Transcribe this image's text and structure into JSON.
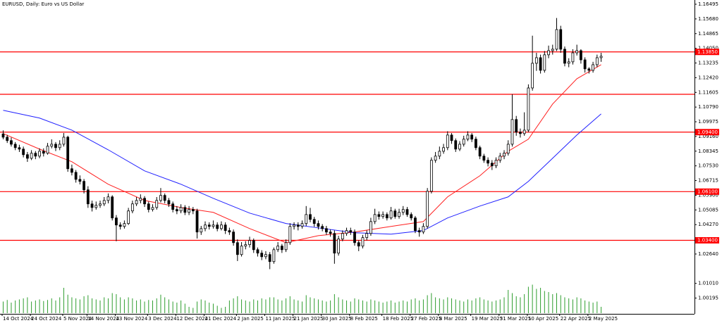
{
  "chart_data": {
    "type": "candlestick",
    "title": "EURUSD, Daily:  Euro vs US Dollar",
    "ylim": [
      1.00195,
      1.16495
    ],
    "yticks": [
      {
        "value": 1.16495,
        "label": "1.16495"
      },
      {
        "value": 1.1568,
        "label": "1.15680"
      },
      {
        "value": 1.14865,
        "label": "1.14865"
      },
      {
        "value": 1.1405,
        "label": "1.14050"
      },
      {
        "value": 1.13235,
        "label": "1.13235"
      },
      {
        "value": 1.1242,
        "label": "1.12420"
      },
      {
        "value": 1.11605,
        "label": "1.11605"
      },
      {
        "value": 1.1079,
        "label": "1.10790"
      },
      {
        "value": 1.09975,
        "label": "1.09975"
      },
      {
        "value": 1.0916,
        "label": "1.09160"
      },
      {
        "value": 1.08345,
        "label": "1.08345"
      },
      {
        "value": 1.0753,
        "label": "1.07530"
      },
      {
        "value": 1.06715,
        "label": "1.06715"
      },
      {
        "value": 1.059,
        "label": "1.05900"
      },
      {
        "value": 1.05085,
        "label": "1.05085"
      },
      {
        "value": 1.0427,
        "label": "1.04270"
      },
      {
        "value": 1.0264,
        "label": "1.02640"
      },
      {
        "value": 1.0101,
        "label": "1.01010"
      },
      {
        "value": 1.00195,
        "label": "1.00195"
      }
    ],
    "date_labels": [
      {
        "index": 0,
        "label": "14 Oct 2024"
      },
      {
        "index": 7,
        "label": "24 Oct 2024"
      },
      {
        "index": 15,
        "label": "5 Nov 2024"
      },
      {
        "index": 21,
        "label": "14 Nov 2024"
      },
      {
        "index": 28,
        "label": "23 Nov 2024"
      },
      {
        "index": 36,
        "label": "3 Dec 2024"
      },
      {
        "index": 43,
        "label": "12 Dec 2024"
      },
      {
        "index": 50,
        "label": "21 Dec 2024"
      },
      {
        "index": 58,
        "label": "2 Jan 2025"
      },
      {
        "index": 65,
        "label": "11 Jan 2025"
      },
      {
        "index": 72,
        "label": "21 Jan 2025"
      },
      {
        "index": 79,
        "label": "30 Jan 2025"
      },
      {
        "index": 86,
        "label": "8 Feb 2025"
      },
      {
        "index": 94,
        "label": "18 Feb 2025"
      },
      {
        "index": 101,
        "label": "27 Feb 2025"
      },
      {
        "index": 108,
        "label": "8 Mar 2025"
      },
      {
        "index": 116,
        "label": "19 Mar 2025"
      },
      {
        "index": 123,
        "label": "31 Mar 2025"
      },
      {
        "index": 130,
        "label": "10 Apr 2025"
      },
      {
        "index": 138,
        "label": "22 Apr 2025"
      },
      {
        "index": 145,
        "label": "2 May 2025"
      }
    ],
    "levels_color": "#ff0000",
    "levels": [
      {
        "value": 1.1385,
        "label": "1.13850"
      },
      {
        "value": 1.115
      },
      {
        "value": 1.094,
        "label": "1.09400"
      },
      {
        "value": 1.061,
        "label": "1.06100"
      },
      {
        "value": 1.034,
        "label": "1.03400"
      }
    ],
    "candle_colors": {
      "up": "#ffffff",
      "down": "#000000",
      "outline": "#000000"
    },
    "candles": [
      [
        1.093,
        1.095,
        1.09,
        1.0912
      ],
      [
        1.0912,
        1.0925,
        1.088,
        1.0893
      ],
      [
        1.0893,
        1.091,
        1.086,
        1.0873
      ],
      [
        1.0873,
        1.0885,
        1.084,
        1.0854
      ],
      [
        1.0854,
        1.087,
        1.083,
        1.0846
      ],
      [
        1.0846,
        1.086,
        1.08,
        1.0815
      ],
      [
        1.0815,
        1.083,
        1.0775,
        1.0795
      ],
      [
        1.0795,
        1.084,
        1.0785,
        1.0823
      ],
      [
        1.0823,
        1.0835,
        1.079,
        1.0807
      ],
      [
        1.0807,
        1.085,
        1.0795,
        1.0834
      ],
      [
        1.0834,
        1.085,
        1.0805,
        1.0823
      ],
      [
        1.0823,
        1.088,
        1.0815,
        1.0862
      ],
      [
        1.0862,
        1.09,
        1.085,
        1.0873
      ],
      [
        1.0873,
        1.0885,
        1.0835,
        1.0854
      ],
      [
        1.0854,
        1.0895,
        1.084,
        1.0873
      ],
      [
        1.0873,
        1.0935,
        1.086,
        1.0912
      ],
      [
        1.0912,
        1.092,
        1.072,
        1.0737
      ],
      [
        1.0737,
        1.076,
        1.07,
        1.0717
      ],
      [
        1.0717,
        1.073,
        1.066,
        1.0678
      ],
      [
        1.0678,
        1.07,
        1.065,
        1.0667
      ],
      [
        1.0667,
        1.068,
        1.06,
        1.062
      ],
      [
        1.062,
        1.064,
        1.052,
        1.0542
      ],
      [
        1.0542,
        1.056,
        1.05,
        1.0522
      ],
      [
        1.0522,
        1.0555,
        1.051,
        1.0534
      ],
      [
        1.0534,
        1.056,
        1.052,
        1.0542
      ],
      [
        1.0542,
        1.058,
        1.053,
        1.0561
      ],
      [
        1.0561,
        1.06,
        1.0545,
        1.0581
      ],
      [
        1.0581,
        1.059,
        1.045,
        1.0464
      ],
      [
        1.0464,
        1.048,
        1.0335,
        1.0425
      ],
      [
        1.0425,
        1.044,
        1.04,
        1.0417
      ],
      [
        1.0417,
        1.045,
        1.0405,
        1.0433
      ],
      [
        1.0433,
        1.052,
        1.0425,
        1.0503
      ],
      [
        1.0503,
        1.056,
        1.049,
        1.0542
      ],
      [
        1.0542,
        1.058,
        1.053,
        1.0561
      ],
      [
        1.0561,
        1.0595,
        1.0545,
        1.0573
      ],
      [
        1.0573,
        1.0585,
        1.0525,
        1.0542
      ],
      [
        1.0542,
        1.0555,
        1.0495,
        1.0511
      ],
      [
        1.0511,
        1.054,
        1.05,
        1.0522
      ],
      [
        1.0522,
        1.058,
        1.051,
        1.0561
      ],
      [
        1.0561,
        1.063,
        1.055,
        1.0589
      ],
      [
        1.0589,
        1.06,
        1.0545,
        1.0561
      ],
      [
        1.0561,
        1.0575,
        1.0525,
        1.0542
      ],
      [
        1.0542,
        1.0555,
        1.0495,
        1.0511
      ],
      [
        1.0511,
        1.053,
        1.0485,
        1.0503
      ],
      [
        1.0503,
        1.054,
        1.049,
        1.0522
      ],
      [
        1.0522,
        1.0535,
        1.048,
        1.0495
      ],
      [
        1.0495,
        1.053,
        1.048,
        1.0511
      ],
      [
        1.0511,
        1.0525,
        1.0485,
        1.0503
      ],
      [
        1.0503,
        1.0515,
        1.035,
        1.0386
      ],
      [
        1.0386,
        1.042,
        1.037,
        1.0405
      ],
      [
        1.0405,
        1.0445,
        1.039,
        1.0425
      ],
      [
        1.0425,
        1.044,
        1.04,
        1.0417
      ],
      [
        1.0417,
        1.045,
        1.0405,
        1.0425
      ],
      [
        1.0425,
        1.044,
        1.039,
        1.0405
      ],
      [
        1.0405,
        1.0445,
        1.0395,
        1.0425
      ],
      [
        1.0425,
        1.044,
        1.0375,
        1.0394
      ],
      [
        1.0394,
        1.041,
        1.037,
        1.0386
      ],
      [
        1.0386,
        1.04,
        1.031,
        1.0327
      ],
      [
        1.0327,
        1.0345,
        1.0225,
        1.0261
      ],
      [
        1.0261,
        1.033,
        1.025,
        1.0308
      ],
      [
        1.0308,
        1.0335,
        1.029,
        1.0316
      ],
      [
        1.0316,
        1.036,
        1.03,
        1.0339
      ],
      [
        1.0339,
        1.035,
        1.027,
        1.0288
      ],
      [
        1.0288,
        1.03,
        1.025,
        1.0269
      ],
      [
        1.0269,
        1.0285,
        1.023,
        1.0249
      ],
      [
        1.0249,
        1.028,
        1.0235,
        1.0261
      ],
      [
        1.0261,
        1.0275,
        1.018,
        1.0222
      ],
      [
        1.0222,
        1.03,
        1.021,
        1.0288
      ],
      [
        1.0288,
        1.033,
        1.0275,
        1.0308
      ],
      [
        1.0308,
        1.032,
        1.027,
        1.0288
      ],
      [
        1.0288,
        1.0345,
        1.0275,
        1.0327
      ],
      [
        1.0327,
        1.0435,
        1.0315,
        1.0417
      ],
      [
        1.0417,
        1.044,
        1.04,
        1.0425
      ],
      [
        1.0425,
        1.044,
        1.0395,
        1.0417
      ],
      [
        1.0417,
        1.045,
        1.0405,
        1.0433
      ],
      [
        1.0433,
        1.053,
        1.042,
        1.0483
      ],
      [
        1.0483,
        1.052,
        1.044,
        1.0456
      ],
      [
        1.0456,
        1.047,
        1.0415,
        1.0433
      ],
      [
        1.0433,
        1.045,
        1.04,
        1.0417
      ],
      [
        1.0417,
        1.043,
        1.039,
        1.0405
      ],
      [
        1.0405,
        1.042,
        1.037,
        1.0386
      ],
      [
        1.0386,
        1.04,
        1.036,
        1.0378
      ],
      [
        1.0378,
        1.0395,
        1.021,
        1.0269
      ],
      [
        1.0269,
        1.0365,
        1.0255,
        1.0347
      ],
      [
        1.0347,
        1.0395,
        1.0335,
        1.0378
      ],
      [
        1.0378,
        1.041,
        1.0365,
        1.0394
      ],
      [
        1.0394,
        1.041,
        1.037,
        1.0386
      ],
      [
        1.0386,
        1.04,
        1.031,
        1.0327
      ],
      [
        1.0327,
        1.034,
        1.028,
        1.0308
      ],
      [
        1.0308,
        1.037,
        1.0295,
        1.0355
      ],
      [
        1.0355,
        1.0395,
        1.034,
        1.0378
      ],
      [
        1.0378,
        1.0465,
        1.0365,
        1.0444
      ],
      [
        1.0444,
        1.0515,
        1.043,
        1.0483
      ],
      [
        1.0483,
        1.05,
        1.0455,
        1.0472
      ],
      [
        1.0472,
        1.05,
        1.046,
        1.0483
      ],
      [
        1.0483,
        1.0495,
        1.045,
        1.0464
      ],
      [
        1.0464,
        1.0525,
        1.0455,
        1.0503
      ],
      [
        1.0503,
        1.0515,
        1.046,
        1.0472
      ],
      [
        1.0472,
        1.0515,
        1.046,
        1.0495
      ],
      [
        1.0495,
        1.053,
        1.048,
        1.0511
      ],
      [
        1.0511,
        1.0525,
        1.047,
        1.0483
      ],
      [
        1.0483,
        1.0495,
        1.045,
        1.0464
      ],
      [
        1.0464,
        1.0475,
        1.038,
        1.0394
      ],
      [
        1.0394,
        1.041,
        1.036,
        1.0386
      ],
      [
        1.0386,
        1.0435,
        1.0375,
        1.0417
      ],
      [
        1.0417,
        1.063,
        1.0405,
        1.0612
      ],
      [
        1.0612,
        1.08,
        1.06,
        1.0784
      ],
      [
        1.0784,
        1.083,
        1.077,
        1.0807
      ],
      [
        1.0807,
        1.086,
        1.079,
        1.0834
      ],
      [
        1.0834,
        1.0875,
        1.082,
        1.0854
      ],
      [
        1.0854,
        1.0945,
        1.084,
        1.0924
      ],
      [
        1.0924,
        1.0935,
        1.0875,
        1.0893
      ],
      [
        1.0893,
        1.0905,
        1.083,
        1.0846
      ],
      [
        1.0846,
        1.089,
        1.0835,
        1.0873
      ],
      [
        1.0873,
        1.092,
        1.086,
        1.0901
      ],
      [
        1.0901,
        1.0945,
        1.089,
        1.0924
      ],
      [
        1.0924,
        1.0935,
        1.0885,
        1.0901
      ],
      [
        1.0901,
        1.0915,
        1.084,
        1.0854
      ],
      [
        1.0854,
        1.0865,
        1.079,
        1.0807
      ],
      [
        1.0807,
        1.082,
        1.077,
        1.0784
      ],
      [
        1.0784,
        1.08,
        1.075,
        1.0768
      ],
      [
        1.0768,
        1.0785,
        1.073,
        1.0753
      ],
      [
        1.0753,
        1.08,
        1.074,
        1.0784
      ],
      [
        1.0784,
        1.0825,
        1.077,
        1.0807
      ],
      [
        1.0807,
        1.084,
        1.079,
        1.0823
      ],
      [
        1.0823,
        1.0895,
        1.081,
        1.0873
      ],
      [
        1.0873,
        1.115,
        1.086,
        1.101
      ],
      [
        1.101,
        1.103,
        1.092,
        1.094
      ],
      [
        1.094,
        1.096,
        1.091,
        1.0932
      ],
      [
        1.0932,
        1.105,
        1.092,
        1.0951
      ],
      [
        1.0951,
        1.1205,
        1.094,
        1.1185
      ],
      [
        1.1185,
        1.1475,
        1.117,
        1.1322
      ],
      [
        1.1322,
        1.138,
        1.128,
        1.1353
      ],
      [
        1.1353,
        1.137,
        1.1265,
        1.1283
      ],
      [
        1.1283,
        1.139,
        1.127,
        1.1369
      ],
      [
        1.1369,
        1.142,
        1.135,
        1.1392
      ],
      [
        1.1392,
        1.1425,
        1.137,
        1.14
      ],
      [
        1.14,
        1.1573,
        1.139,
        1.1509
      ],
      [
        1.1509,
        1.153,
        1.138,
        1.14
      ],
      [
        1.14,
        1.1415,
        1.1305,
        1.1322
      ],
      [
        1.1322,
        1.135,
        1.13,
        1.133
      ],
      [
        1.133,
        1.14,
        1.1315,
        1.138
      ],
      [
        1.138,
        1.1425,
        1.1365,
        1.1392
      ],
      [
        1.1392,
        1.14,
        1.132,
        1.1341
      ],
      [
        1.1341,
        1.1355,
        1.127,
        1.1291
      ],
      [
        1.1291,
        1.13,
        1.1265,
        1.1283
      ],
      [
        1.1283,
        1.133,
        1.127,
        1.1314
      ],
      [
        1.1314,
        1.137,
        1.13,
        1.1353
      ],
      [
        1.1353,
        1.138,
        1.133,
        1.1361
      ]
    ],
    "moving_averages": [
      {
        "color": "#ff2020",
        "x": [
          0,
          9,
          17,
          26,
          35,
          44,
          52,
          61,
          70,
          78,
          87,
          96,
          104,
          110,
          118,
          125,
          130,
          136,
          142,
          148
        ],
        "values": [
          1.0932,
          1.0846,
          1.0776,
          1.0651,
          1.0561,
          1.0522,
          1.0495,
          1.0405,
          1.0327,
          1.0366,
          1.0386,
          1.0417,
          1.0444,
          1.0581,
          1.0698,
          1.0834,
          1.0901,
          1.1096,
          1.1236,
          1.1314
        ]
      },
      {
        "color": "#2020ff",
        "x": [
          0,
          9,
          17,
          26,
          35,
          44,
          52,
          61,
          70,
          78,
          87,
          96,
          104,
          110,
          118,
          125,
          130,
          136,
          142,
          148
        ],
        "values": [
          1.1061,
          1.1018,
          1.0951,
          1.0842,
          1.0725,
          1.0651,
          1.0573,
          1.0491,
          1.0433,
          1.0409,
          1.0382,
          1.0374,
          1.0394,
          1.0464,
          1.053,
          1.0581,
          1.0667,
          1.0795,
          1.0924,
          1.1041
        ]
      }
    ],
    "volume_color": "#2f9e2f",
    "volume": [
      22,
      25,
      20,
      24,
      26,
      28,
      30,
      22,
      24,
      26,
      23,
      25,
      28,
      24,
      30,
      48,
      35,
      30,
      28,
      26,
      32,
      34,
      28,
      26,
      24,
      30,
      28,
      38,
      36,
      30,
      26,
      30,
      28,
      24,
      26,
      22,
      25,
      24,
      28,
      35,
      30,
      26,
      22,
      20,
      24,
      18,
      12,
      10,
      22,
      26,
      24,
      20,
      18,
      14,
      10,
      12,
      24,
      28,
      32,
      26,
      24,
      22,
      26,
      24,
      28,
      26,
      30,
      30,
      26,
      24,
      28,
      32,
      26,
      24,
      22,
      34,
      30,
      28,
      26,
      24,
      22,
      24,
      36,
      30,
      26,
      24,
      22,
      28,
      26,
      24,
      22,
      26,
      24,
      22,
      20,
      22,
      24,
      20,
      22,
      24,
      22,
      26,
      28,
      24,
      26,
      34,
      38,
      30,
      28,
      26,
      30,
      28,
      26,
      24,
      22,
      26,
      24,
      28,
      30,
      26,
      24,
      22,
      24,
      26,
      30,
      44,
      38,
      32,
      30,
      36,
      50,
      54,
      46,
      48,
      42,
      40,
      36,
      38,
      34,
      30,
      28,
      26,
      30,
      28,
      24,
      22,
      20,
      22,
      12
    ]
  }
}
